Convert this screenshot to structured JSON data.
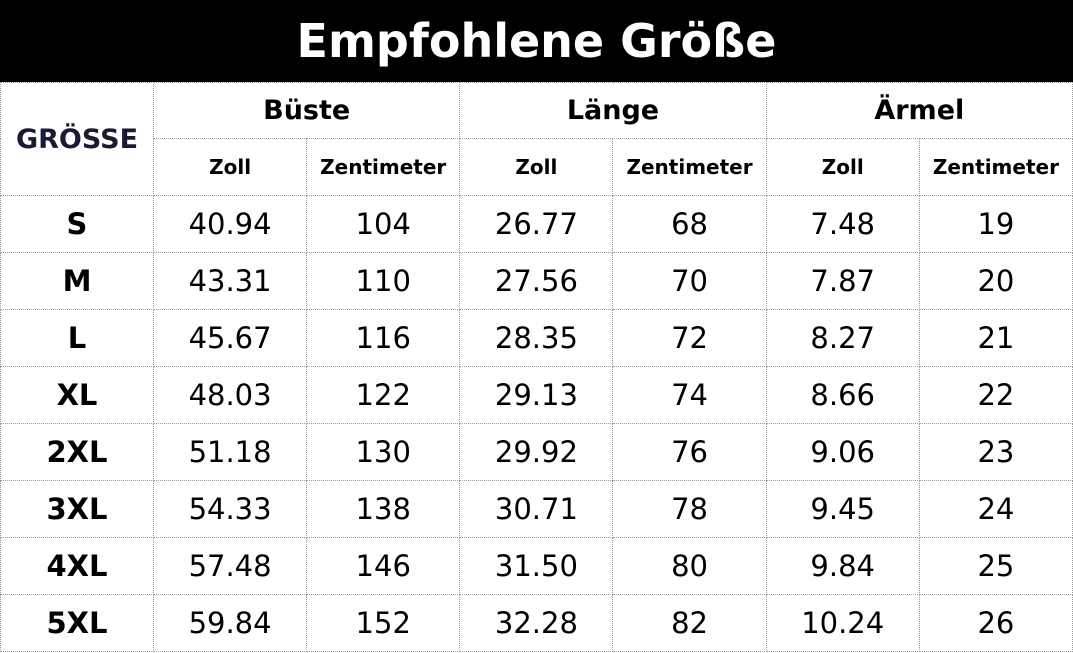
{
  "header": {
    "title": "Empfohlene Größe"
  },
  "table": {
    "size_header": "GRÖSSE",
    "groups": [
      {
        "label": "Büste",
        "sub": [
          "Zoll",
          "Zentimeter"
        ]
      },
      {
        "label": "Länge",
        "sub": [
          "Zoll",
          "Zentimeter"
        ]
      },
      {
        "label": "Ärmel",
        "sub": [
          "Zoll",
          "Zentimeter"
        ]
      }
    ],
    "rows": [
      [
        "S",
        "40.94",
        "104",
        "26.77",
        "68",
        "7.48",
        "19"
      ],
      [
        "M",
        "43.31",
        "110",
        "27.56",
        "70",
        "7.87",
        "20"
      ],
      [
        "L",
        "45.67",
        "116",
        "28.35",
        "72",
        "8.27",
        "21"
      ],
      [
        "XL",
        "48.03",
        "122",
        "29.13",
        "74",
        "8.66",
        "22"
      ],
      [
        "2XL",
        "51.18",
        "130",
        "29.92",
        "76",
        "9.06",
        "23"
      ],
      [
        "3XL",
        "54.33",
        "138",
        "30.71",
        "78",
        "9.45",
        "24"
      ],
      [
        "4XL",
        "57.48",
        "146",
        "31.50",
        "80",
        "9.84",
        "25"
      ],
      [
        "5XL",
        "59.84",
        "152",
        "32.28",
        "82",
        "10.24",
        "26"
      ]
    ]
  }
}
